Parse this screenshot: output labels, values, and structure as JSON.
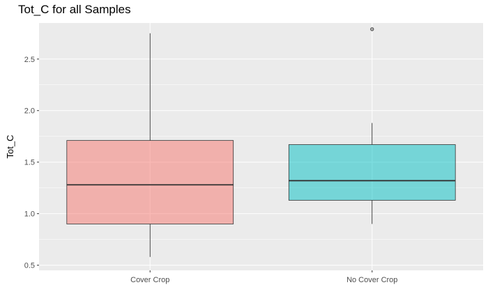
{
  "chart_data": {
    "type": "boxplot",
    "title": "Tot_C for all Samples",
    "xlabel": "",
    "ylabel": "Tot_C",
    "categories": [
      "Cover Crop",
      "No Cover Crop"
    ],
    "boxes": [
      {
        "category": "Cover Crop",
        "whisker_low": 0.58,
        "q1": 0.9,
        "median": 1.28,
        "q3": 1.71,
        "whisker_high": 2.75,
        "outliers": [],
        "fill": "#f8766d"
      },
      {
        "category": "No Cover Crop",
        "whisker_low": 0.9,
        "q1": 1.13,
        "median": 1.32,
        "q3": 1.67,
        "whisker_high": 1.88,
        "outliers": [
          2.79
        ],
        "fill": "#00bfc4"
      }
    ],
    "ylim": [
      0.45,
      2.85
    ],
    "yticks": [
      "0.5",
      "1.0",
      "1.5",
      "2.0",
      "2.5"
    ],
    "grid": true,
    "legend": "none",
    "panel_background": "#ebebeb"
  }
}
